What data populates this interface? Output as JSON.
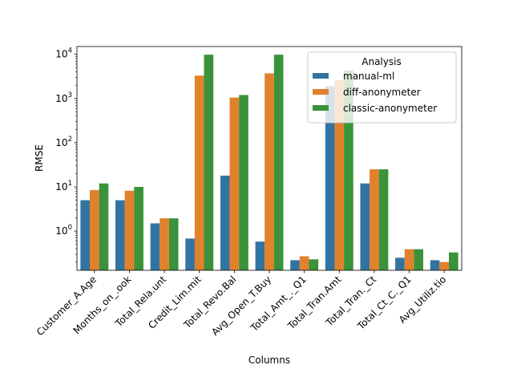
{
  "chart_data": {
    "type": "bar",
    "title": "",
    "xlabel": "Columns",
    "ylabel": "RMSE",
    "yscale": "log",
    "ylim": [
      0.13,
      15000
    ],
    "grid": false,
    "legend": {
      "title": "Analysis",
      "placement": "top-right"
    },
    "categories": [
      "Customer_A.Age",
      "Months_on_.ook",
      "Total_Rela.unt",
      "Credit_Lim.mit",
      "Total_Revo.Bal",
      "Avg_Open_T.Buy",
      "Total_Amt_._Q1",
      "Total_Tran.Amt",
      "Total_Tran._Ct",
      "Total_Ct_C._Q1",
      "Avg_Utiliz.tio"
    ],
    "series": [
      {
        "name": "manual-ml",
        "color": "#3274a1",
        "values": [
          5.0,
          5.0,
          1.5,
          0.68,
          18,
          0.58,
          0.22,
          1900,
          12,
          0.25,
          0.22
        ]
      },
      {
        "name": "diff-anonymeter",
        "color": "#e1812c",
        "values": [
          8.5,
          8.2,
          1.95,
          3300,
          1050,
          3700,
          0.27,
          2600,
          25,
          0.39,
          0.2
        ]
      },
      {
        "name": "classic-anonymeter",
        "color": "#3a923a",
        "values": [
          12,
          10,
          1.95,
          9800,
          1200,
          9800,
          0.23,
          4300,
          25,
          0.39,
          0.33
        ]
      }
    ],
    "yticks": [
      {
        "value": 1,
        "base": "10",
        "exp": "0"
      },
      {
        "value": 10,
        "base": "10",
        "exp": "1"
      },
      {
        "value": 100,
        "base": "10",
        "exp": "2"
      },
      {
        "value": 1000,
        "base": "10",
        "exp": "3"
      },
      {
        "value": 10000,
        "base": "10",
        "exp": "4"
      }
    ]
  }
}
